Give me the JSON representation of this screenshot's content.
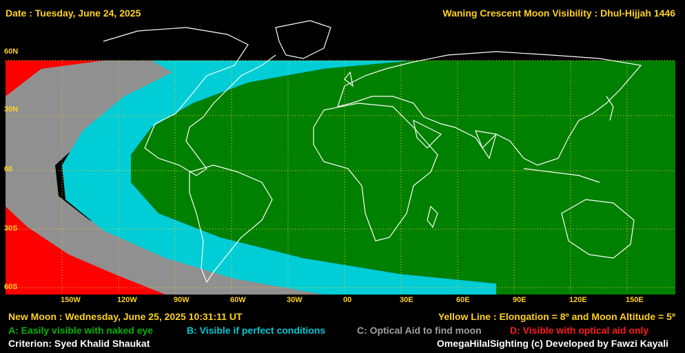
{
  "header": {
    "date": "Date : Tuesday, June 24, 2025",
    "title": "Waning Crescent Moon Visibility : Dhul-Hijjah 1446"
  },
  "lat_labels": [
    "60N",
    "30N",
    "00",
    "30S",
    "60S"
  ],
  "lon_labels": [
    "150W",
    "120W",
    "90W",
    "60W",
    "30W",
    "00",
    "30E",
    "60E",
    "90E",
    "120E",
    "150E"
  ],
  "info": {
    "new_moon": "New Moon : Wednesday, June 25, 2025  10:31:11  UT",
    "yellow_line": "Yellow Line : Elongation = 8º  and Moon Altitude = 5º",
    "criterion": "Criterion: Syed Khalid Shaukat",
    "credit": "OmegaHilalSighting  (c)  Developed by Fawzi Kayali"
  },
  "legend": [
    {
      "label": "A: Easily visible with naked eye",
      "color": "#008000"
    },
    {
      "label": "B: Visible if perfect conditions",
      "color": "#00c8d2"
    },
    {
      "label": "C: Optical Aid to find moon",
      "color": "#a0a0a0"
    },
    {
      "label": "D: Visible with optical aid only",
      "color": "#ff0000"
    }
  ],
  "colors": {
    "zone_a": "#008000",
    "zone_b": "#00cdd5",
    "zone_c": "#909090",
    "zone_d": "#ff0000",
    "grid": "#ffd21f",
    "coast": "#ffffff"
  }
}
